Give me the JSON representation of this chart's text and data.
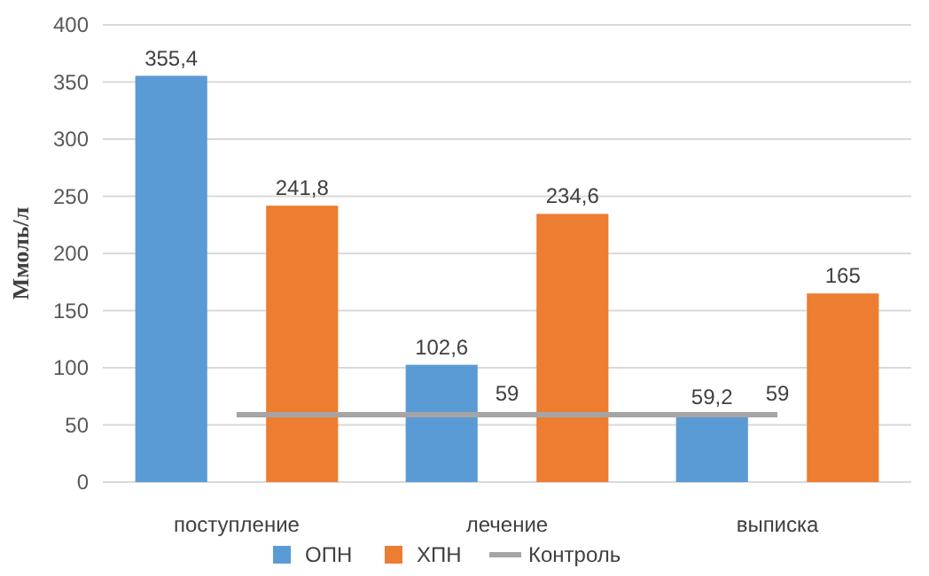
{
  "chart_data": {
    "type": "bar",
    "ylabel": "Ммоль/л",
    "categories": [
      "поступление",
      "лечение",
      "выписка"
    ],
    "series": [
      {
        "name": "ОПН",
        "color": "#5b9bd5",
        "values": [
          355.4,
          102.6,
          59.2
        ],
        "value_labels": [
          "355,4",
          "102,6",
          "59,2"
        ]
      },
      {
        "name": "ХПН",
        "color": "#ed7d31",
        "values": [
          241.8,
          234.6,
          165
        ],
        "value_labels": [
          "241,8",
          "234,6",
          "165"
        ]
      },
      {
        "name": "Контроль",
        "type": "line",
        "color": "#a5a5a5",
        "values": [
          59,
          59,
          59
        ],
        "value_labels": [
          null,
          "59",
          "59"
        ]
      }
    ],
    "ylim": [
      0,
      400
    ],
    "yticks": [
      0,
      50,
      100,
      150,
      200,
      250,
      300,
      350,
      400
    ],
    "grid": "y",
    "legend": "bottom"
  }
}
